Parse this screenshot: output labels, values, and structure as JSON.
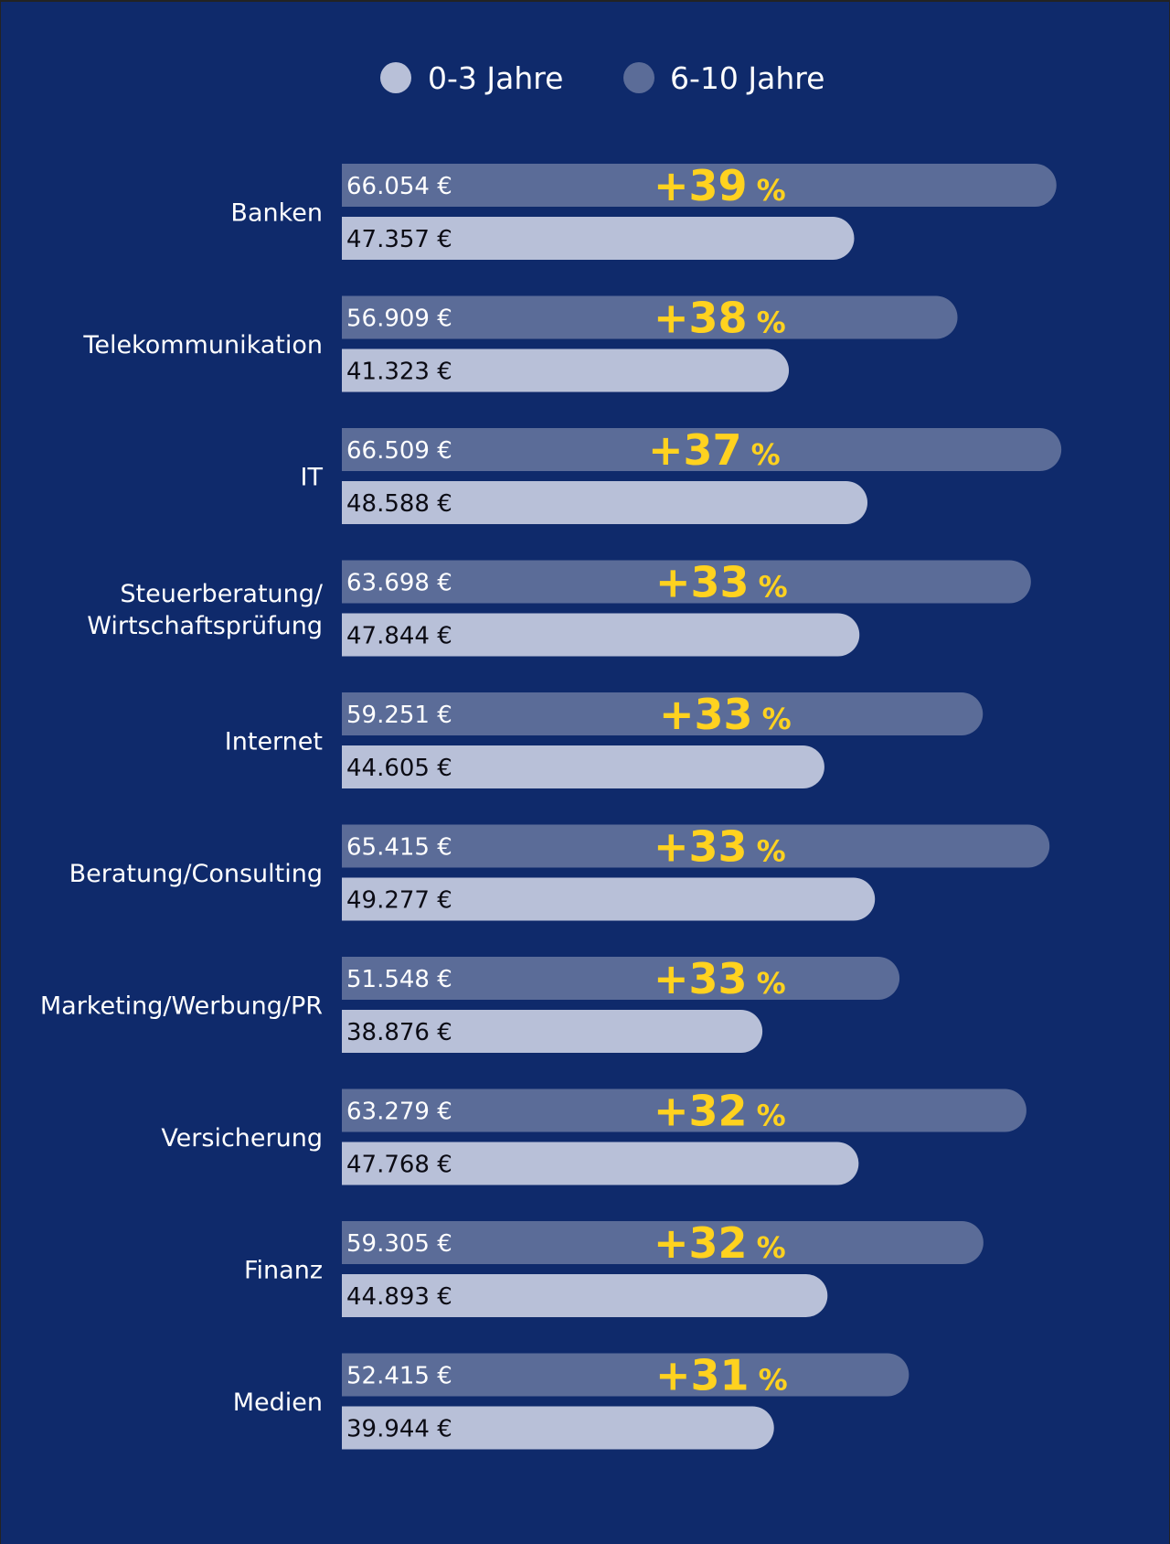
{
  "colors": {
    "background": "#0f2a6b",
    "series_0_3": "#b8c0d8",
    "series_6_10": "#5b6c98",
    "percent": "#ffd21f",
    "label": "#ffffff"
  },
  "legend": {
    "items": [
      {
        "label": "0-3 Jahre",
        "color": "#b8c0d8"
      },
      {
        "label": "6-10 Jahre",
        "color": "#5b6c98"
      }
    ]
  },
  "chart_data": {
    "type": "bar",
    "orientation": "horizontal",
    "grid": false,
    "legend_position": "top-center",
    "currency_suffix": "€",
    "categories": [
      [
        "Banken"
      ],
      [
        "Telekommunikation"
      ],
      [
        "IT"
      ],
      [
        "Steuerberatung/",
        "Wirtschaftsprüfung"
      ],
      [
        "Internet"
      ],
      [
        "Beratung/Consulting"
      ],
      [
        "Marketing/Werbung/PR"
      ],
      [
        "Versicherung"
      ],
      [
        "Finanz"
      ],
      [
        "Medien"
      ]
    ],
    "series": [
      {
        "name": "6-10 Jahre",
        "values": [
          66054,
          56909,
          66509,
          63698,
          59251,
          65415,
          51548,
          63279,
          59305,
          52415
        ],
        "labels": [
          "66.054 €",
          "56.909 €",
          "66.509 €",
          "63.698 €",
          "59.251 €",
          "65.415 €",
          "51.548 €",
          "63.279 €",
          "59.305 €",
          "52.415 €"
        ]
      },
      {
        "name": "0-3 Jahre",
        "values": [
          47357,
          41323,
          48588,
          47844,
          44605,
          49277,
          38876,
          47768,
          44893,
          39944
        ],
        "labels": [
          "47.357 €",
          "41.323 €",
          "48.588 €",
          "47.844 €",
          "44.605 €",
          "49.277 €",
          "38.876 €",
          "47.768 €",
          "44.893 €",
          "39.944 €"
        ]
      }
    ],
    "increase_labels": [
      "+39",
      "+38",
      "+37",
      "+33",
      "+33",
      "+33",
      "+33",
      "+32",
      "+32",
      "+31"
    ],
    "increase_unit": "%"
  }
}
